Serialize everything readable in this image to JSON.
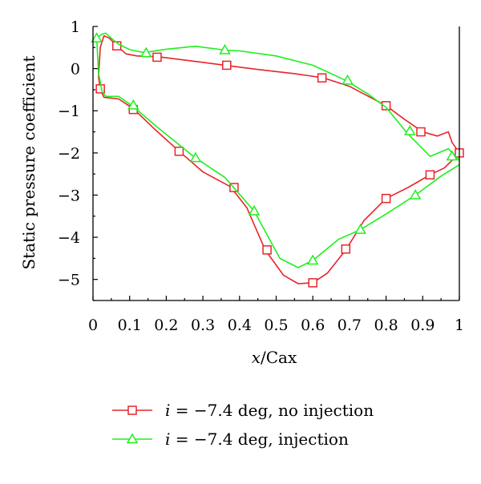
{
  "chart_data": {
    "type": "line",
    "title": "",
    "ylabel": "Static pressure coefficient",
    "xlabel_italic": "x",
    "xlabel_rest": "/Cax",
    "xlim": [
      0,
      1
    ],
    "ylim": [
      -5.5,
      1
    ],
    "x_ticks": [
      0,
      0.1,
      0.2,
      0.3,
      0.4,
      0.5,
      0.6,
      0.7,
      0.8,
      0.9,
      1
    ],
    "x_tick_labels": [
      "0",
      "0.1",
      "0.2",
      "0.3",
      "0.4",
      "0.5",
      "0.6",
      "0.7",
      "0.8",
      "0.9",
      "1"
    ],
    "y_ticks": [
      1,
      0,
      -1,
      -2,
      -3,
      -4,
      -5
    ],
    "y_tick_labels": [
      "1",
      "0",
      "−1",
      "−2",
      "−3",
      "−4",
      "−5"
    ],
    "grid": false,
    "legend_position": "bottom",
    "series": [
      {
        "name": "i = −7.4 deg, no injection",
        "legend_italic": "i",
        "legend_rest": " = −7.4 deg, no injection",
        "color": "#e8242b",
        "marker": "square",
        "line": [
          [
            1.0,
            -2.0
          ],
          [
            0.98,
            -1.75
          ],
          [
            0.97,
            -1.5
          ],
          [
            0.94,
            -1.6
          ],
          [
            0.9,
            -1.5
          ],
          [
            0.85,
            -1.2
          ],
          [
            0.8,
            -0.88
          ],
          [
            0.7,
            -0.42
          ],
          [
            0.63,
            -0.22
          ],
          [
            0.55,
            -0.12
          ],
          [
            0.45,
            -0.02
          ],
          [
            0.36,
            0.08
          ],
          [
            0.28,
            0.17
          ],
          [
            0.18,
            0.28
          ],
          [
            0.12,
            0.3
          ],
          [
            0.09,
            0.35
          ],
          [
            0.065,
            0.54
          ],
          [
            0.045,
            0.72
          ],
          [
            0.03,
            0.78
          ],
          [
            0.02,
            0.5
          ],
          [
            0.015,
            -0.2
          ],
          [
            0.02,
            -0.5
          ],
          [
            0.03,
            -0.68
          ],
          [
            0.05,
            -0.7
          ],
          [
            0.07,
            -0.72
          ],
          [
            0.11,
            -0.95
          ],
          [
            0.17,
            -1.45
          ],
          [
            0.235,
            -1.96
          ],
          [
            0.3,
            -2.45
          ],
          [
            0.375,
            -2.8
          ],
          [
            0.42,
            -3.3
          ],
          [
            0.47,
            -4.3
          ],
          [
            0.52,
            -4.9
          ],
          [
            0.56,
            -5.1
          ],
          [
            0.6,
            -5.08
          ],
          [
            0.64,
            -4.85
          ],
          [
            0.69,
            -4.3
          ],
          [
            0.74,
            -3.6
          ],
          [
            0.8,
            -3.08
          ],
          [
            0.86,
            -2.82
          ],
          [
            0.92,
            -2.52
          ],
          [
            0.96,
            -2.35
          ],
          [
            1.0,
            -2.0
          ]
        ],
        "markers": [
          [
            0.065,
            0.54
          ],
          [
            0.175,
            0.27
          ],
          [
            0.365,
            0.08
          ],
          [
            0.625,
            -0.22
          ],
          [
            0.8,
            -0.88
          ],
          [
            0.895,
            -1.5
          ],
          [
            1.0,
            -2.0
          ],
          [
            0.02,
            -0.48
          ],
          [
            0.11,
            -0.97
          ],
          [
            0.235,
            -1.96
          ],
          [
            0.385,
            -2.82
          ],
          [
            0.475,
            -4.3
          ],
          [
            0.6,
            -5.08
          ],
          [
            0.69,
            -4.28
          ],
          [
            0.8,
            -3.08
          ],
          [
            0.92,
            -2.52
          ]
        ]
      },
      {
        "name": "i = −7.4 deg, injection",
        "legend_italic": "i",
        "legend_rest": " = −7.4 deg, injection",
        "color": "#1ef01e",
        "marker": "triangle",
        "line": [
          [
            1.0,
            -2.18
          ],
          [
            0.97,
            -1.9
          ],
          [
            0.92,
            -2.08
          ],
          [
            0.86,
            -1.55
          ],
          [
            0.8,
            -0.92
          ],
          [
            0.75,
            -0.6
          ],
          [
            0.69,
            -0.28
          ],
          [
            0.6,
            0.08
          ],
          [
            0.5,
            0.3
          ],
          [
            0.4,
            0.42
          ],
          [
            0.36,
            0.44
          ],
          [
            0.28,
            0.53
          ],
          [
            0.2,
            0.46
          ],
          [
            0.14,
            0.38
          ],
          [
            0.1,
            0.45
          ],
          [
            0.07,
            0.58
          ],
          [
            0.05,
            0.72
          ],
          [
            0.035,
            0.84
          ],
          [
            0.025,
            0.82
          ],
          [
            0.01,
            0.72
          ],
          [
            0.015,
            -0.1
          ],
          [
            0.025,
            -0.55
          ],
          [
            0.035,
            -0.66
          ],
          [
            0.07,
            -0.66
          ],
          [
            0.11,
            -0.9
          ],
          [
            0.17,
            -1.35
          ],
          [
            0.28,
            -2.12
          ],
          [
            0.36,
            -2.58
          ],
          [
            0.44,
            -3.38
          ],
          [
            0.51,
            -4.5
          ],
          [
            0.56,
            -4.72
          ],
          [
            0.6,
            -4.55
          ],
          [
            0.67,
            -4.05
          ],
          [
            0.73,
            -3.82
          ],
          [
            0.8,
            -3.45
          ],
          [
            0.88,
            -3.0
          ],
          [
            0.95,
            -2.55
          ],
          [
            1.0,
            -2.28
          ]
        ],
        "markers": [
          [
            0.01,
            0.72
          ],
          [
            0.145,
            0.37
          ],
          [
            0.36,
            0.44
          ],
          [
            0.695,
            -0.28
          ],
          [
            0.865,
            -1.48
          ],
          [
            0.98,
            -2.08
          ],
          [
            0.11,
            -0.87
          ],
          [
            0.28,
            -2.12
          ],
          [
            0.44,
            -3.38
          ],
          [
            0.6,
            -4.55
          ],
          [
            0.73,
            -3.82
          ],
          [
            0.88,
            -3.0
          ]
        ]
      }
    ]
  }
}
